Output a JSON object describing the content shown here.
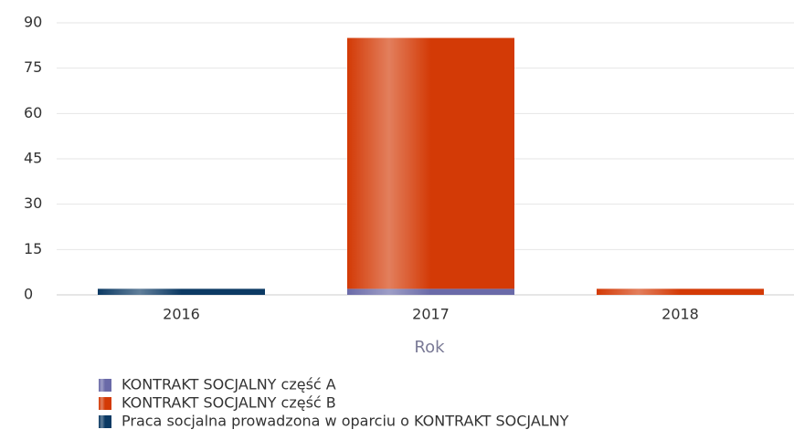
{
  "chart_data": {
    "type": "stacked_bar",
    "x_label": "Rok",
    "categories": [
      "2016",
      "2017",
      "2018"
    ],
    "series": [
      {
        "name": "KONTRAKT SOCJALNY część A",
        "color": "#6a6aa8",
        "values": [
          0,
          2,
          0
        ]
      },
      {
        "name": "KONTRAKT SOCJALNY część B",
        "color": "#d33a06",
        "values": [
          0,
          83,
          2
        ]
      },
      {
        "name": "Praca socjalna prowadzona w oparciu o KONTRAKT SOCJALNY",
        "color": "#0c3a64",
        "values": [
          2,
          0,
          0
        ]
      }
    ],
    "ylim": [
      0,
      90
    ],
    "yticks": [
      0,
      15,
      30,
      45,
      60,
      75,
      90
    ],
    "grid": true
  }
}
